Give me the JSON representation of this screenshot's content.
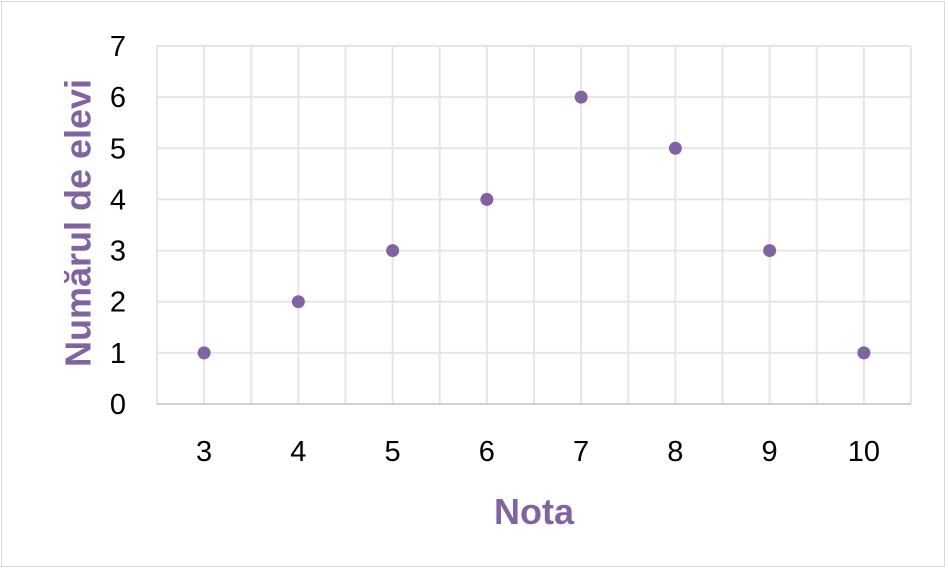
{
  "chart_data": {
    "type": "scatter",
    "title": "",
    "xlabel": "Nota",
    "ylabel": "Numărul de elevi",
    "x_ticks": [
      "3",
      "4",
      "5",
      "6",
      "7",
      "8",
      "9",
      "10"
    ],
    "y_ticks": [
      "0",
      "1",
      "2",
      "3",
      "4",
      "5",
      "6",
      "7"
    ],
    "xlim": [
      2.5,
      10.5
    ],
    "ylim": [
      0,
      7
    ],
    "grid": true,
    "legend": "none",
    "series": [
      {
        "x": [
          3,
          4,
          5,
          6,
          7,
          8,
          9,
          10
        ],
        "y": [
          1,
          2,
          3,
          4,
          6,
          5,
          3,
          1
        ]
      }
    ],
    "colors": {
      "marker": "#8064a2",
      "axis_title": "#8064a2",
      "grid": "#e6e6e6",
      "axis": "#d0d0d0"
    }
  }
}
